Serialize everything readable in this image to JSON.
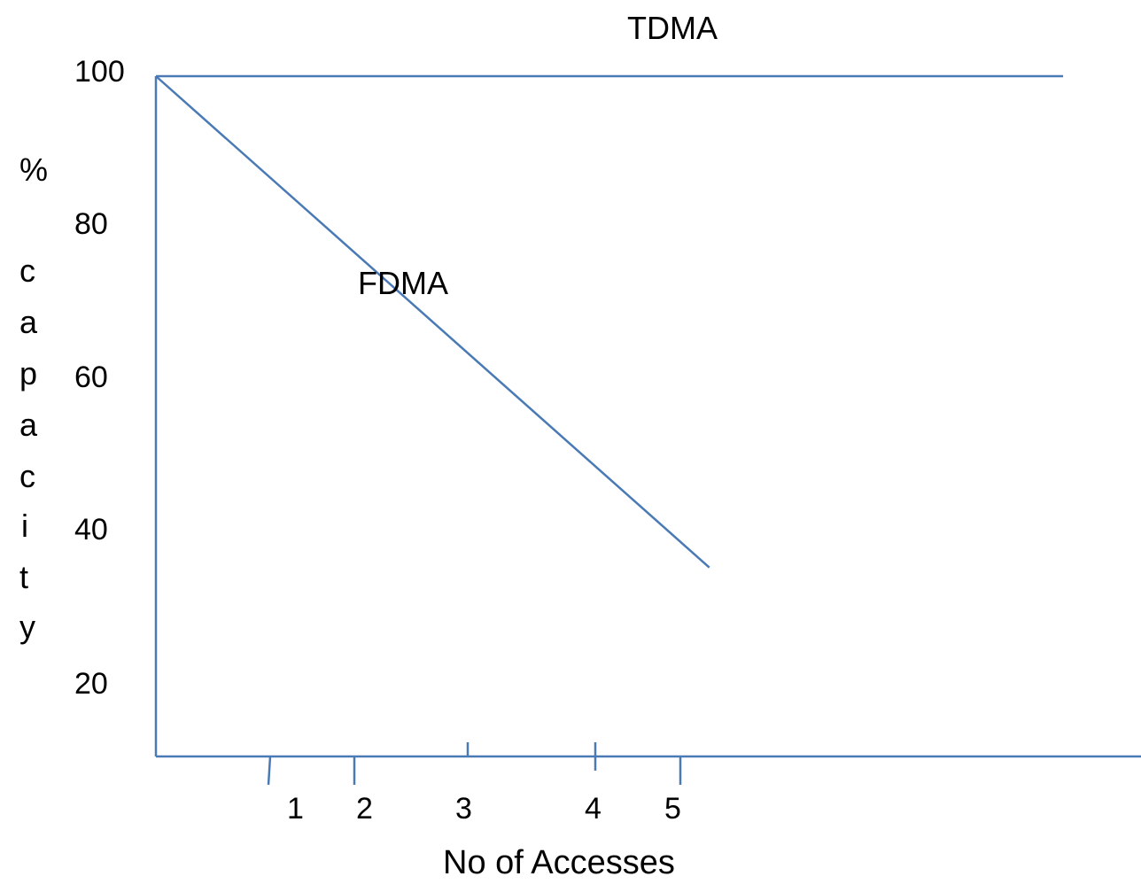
{
  "chart_data": {
    "type": "line",
    "title": "",
    "xlabel": "No of Accesses",
    "ylabel_letters": [
      "%",
      "c",
      "a",
      "p",
      "a",
      "c",
      "i",
      "t",
      "y"
    ],
    "ylabel": "% capacity",
    "y_ticks": [
      "100",
      "80",
      "60",
      "40",
      "20"
    ],
    "x_ticks": [
      "1",
      "2",
      "3",
      "4",
      "5"
    ],
    "series": [
      {
        "name": "TDMA",
        "x": [
          0,
          7
        ],
        "y": [
          100,
          100
        ]
      },
      {
        "name": "FDMA",
        "x": [
          0,
          4.27
        ],
        "y": [
          100,
          35.5
        ]
      }
    ],
    "line_color": "#4a7ab5",
    "grid": false,
    "legend": "none"
  }
}
